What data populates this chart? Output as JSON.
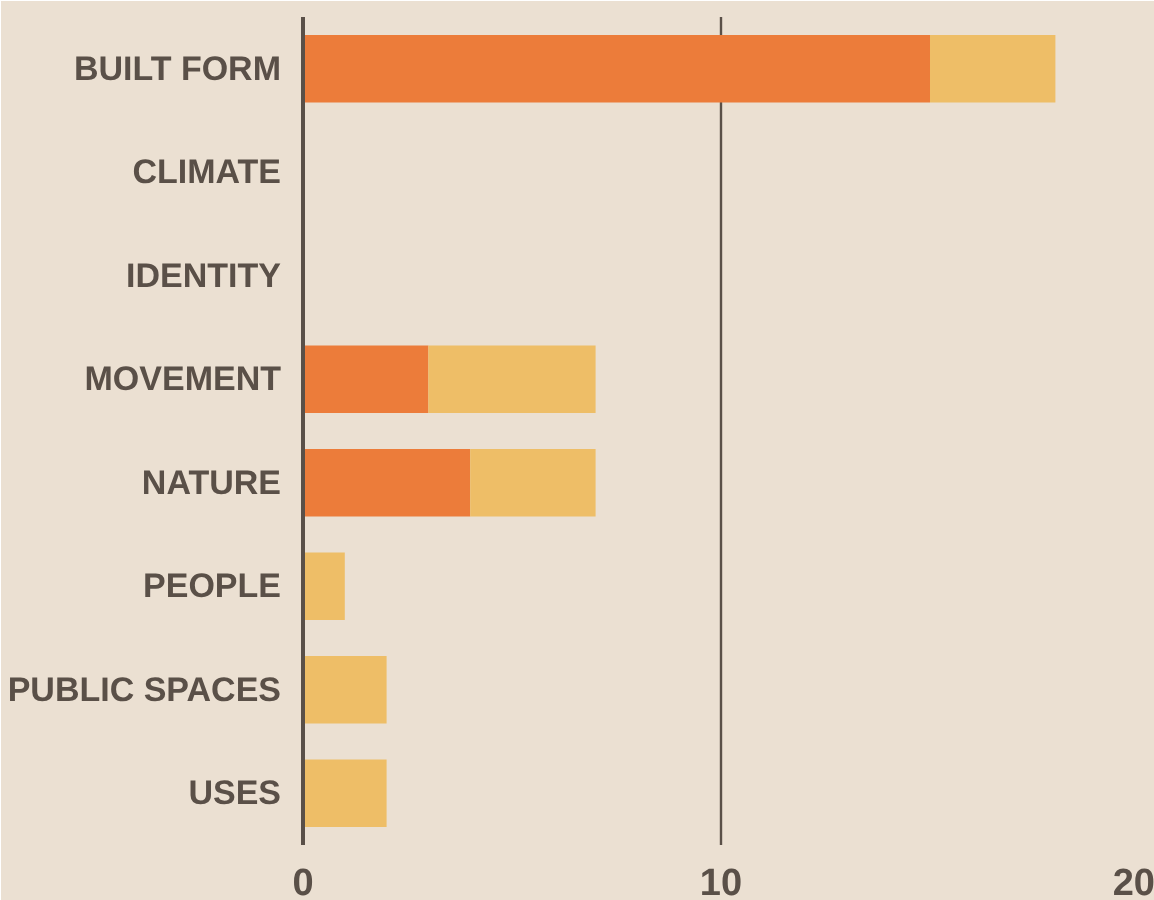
{
  "chart_data": {
    "type": "bar",
    "orientation": "horizontal",
    "stacked": true,
    "categories": [
      "BUILT FORM",
      "CLIMATE",
      "IDENTITY",
      "MOVEMENT",
      "NATURE",
      "PEOPLE",
      "PUBLIC SPACES",
      "USES"
    ],
    "series": [
      {
        "color": "#ec7c3a",
        "values": [
          15,
          0,
          0,
          3,
          4,
          0,
          0,
          0
        ]
      },
      {
        "color": "#eebe67",
        "values": [
          3,
          0,
          0,
          4,
          3,
          1,
          2,
          2
        ]
      }
    ],
    "xlim": [
      0,
      20
    ],
    "xticks": [
      0,
      10,
      20
    ],
    "grid": "x"
  }
}
